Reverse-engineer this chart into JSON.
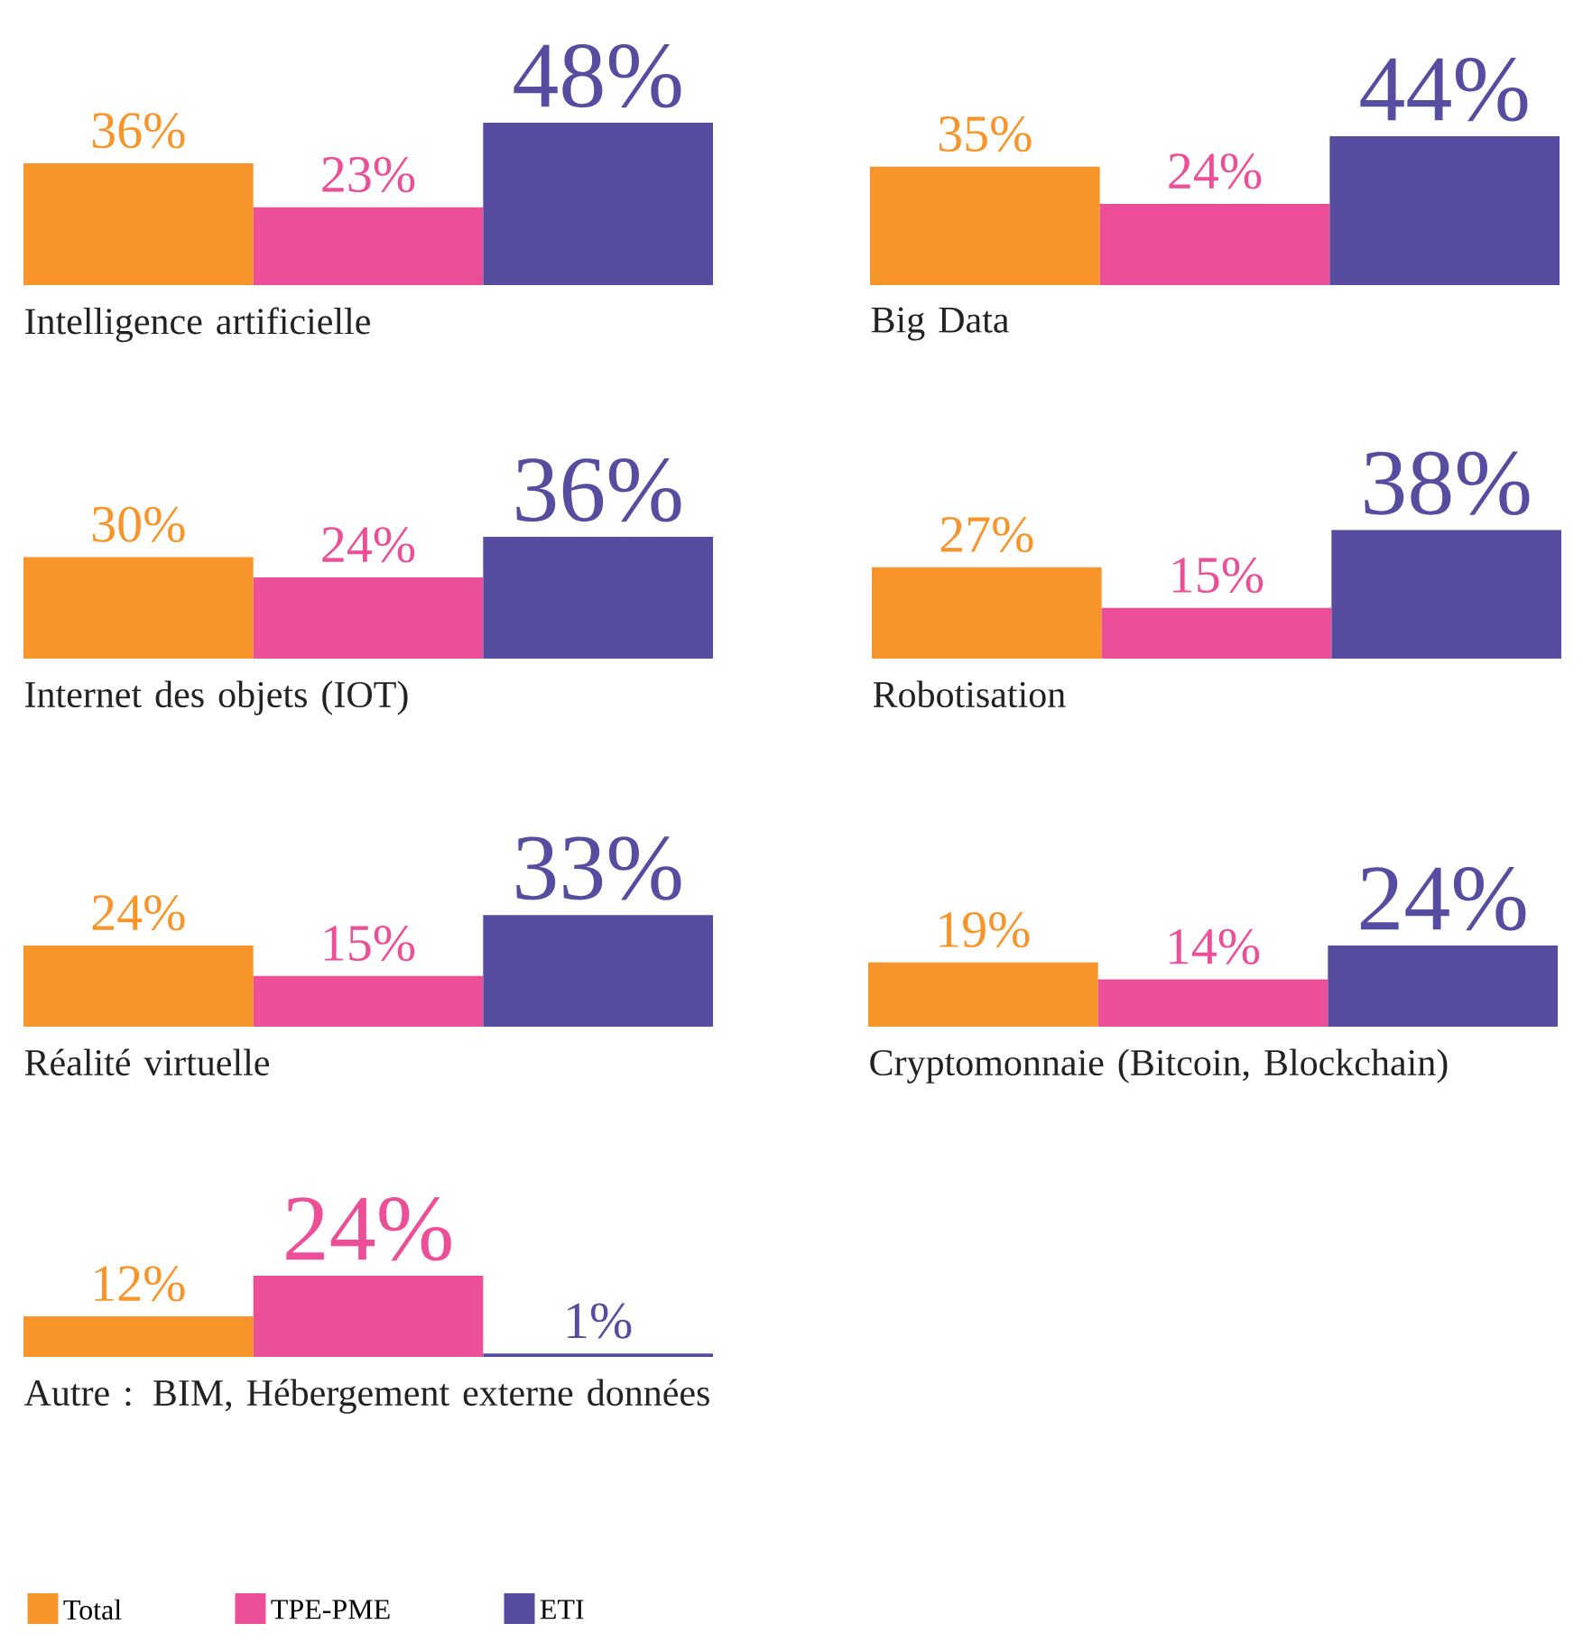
{
  "chart_data": [
    {
      "type": "bar",
      "xlabel": "Intelligence artificielle",
      "categories": [
        null
      ],
      "series": [
        {
          "color": "#f7952b",
          "values": [
            36
          ],
          "value_labels": [
            "36%"
          ]
        },
        {
          "color": "#ec4f97",
          "values": [
            23
          ],
          "value_labels": [
            "23%"
          ]
        },
        {
          "color": "#564ca0",
          "values": [
            48
          ],
          "value_labels": [
            "48%"
          ]
        }
      ]
    },
    {
      "type": "bar",
      "xlabel": "Big Data",
      "categories": [
        null
      ],
      "series": [
        {
          "color": "#f7952b",
          "values": [
            35
          ],
          "value_labels": [
            "35%"
          ]
        },
        {
          "color": "#ec4f97",
          "values": [
            24
          ],
          "value_labels": [
            "24%"
          ]
        },
        {
          "color": "#564ca0",
          "values": [
            44
          ],
          "value_labels": [
            "44%"
          ]
        }
      ]
    },
    {
      "type": "bar",
      "xlabel": "Internet des objets (IOT)",
      "categories": [
        null
      ],
      "series": [
        {
          "color": "#f7952b",
          "values": [
            30
          ],
          "value_labels": [
            "30%"
          ]
        },
        {
          "color": "#ec4f97",
          "values": [
            24
          ],
          "value_labels": [
            "24%"
          ]
        },
        {
          "color": "#564ca0",
          "values": [
            36
          ],
          "value_labels": [
            "36%"
          ]
        }
      ]
    },
    {
      "type": "bar",
      "xlabel": "Robotisation",
      "categories": [
        null
      ],
      "series": [
        {
          "color": "#f7952b",
          "values": [
            27
          ],
          "value_labels": [
            "27%"
          ]
        },
        {
          "color": "#ec4f97",
          "values": [
            15
          ],
          "value_labels": [
            "15%"
          ]
        },
        {
          "color": "#564ca0",
          "values": [
            38
          ],
          "value_labels": [
            "38%"
          ]
        }
      ]
    },
    {
      "type": "bar",
      "xlabel": "Réalité virtuelle",
      "categories": [
        null
      ],
      "series": [
        {
          "color": "#f7952b",
          "values": [
            24
          ],
          "value_labels": [
            "24%"
          ]
        },
        {
          "color": "#ec4f97",
          "values": [
            15
          ],
          "value_labels": [
            "15%"
          ]
        },
        {
          "color": "#564ca0",
          "values": [
            33
          ],
          "value_labels": [
            "33%"
          ]
        }
      ]
    },
    {
      "type": "bar",
      "xlabel": "Cryptomonnaie (Bitcoin, Blockchain)",
      "categories": [
        null
      ],
      "series": [
        {
          "color": "#f7952b",
          "values": [
            19
          ],
          "value_labels": [
            "19%"
          ]
        },
        {
          "color": "#ec4f97",
          "values": [
            14
          ],
          "value_labels": [
            "14%"
          ]
        },
        {
          "color": "#564ca0",
          "values": [
            24
          ],
          "value_labels": [
            "24%"
          ]
        }
      ]
    },
    {
      "type": "bar",
      "xlabel": "Autre : BIM, Hébergement externe données",
      "categories": [
        null
      ],
      "legend": "bottom",
      "series": [
        {
          "name": "Total",
          "color": "#f7952b",
          "values": [
            12
          ],
          "value_labels": [
            "12%"
          ]
        },
        {
          "name": "TPE-PME",
          "color": "#ec4f97",
          "values": [
            24
          ],
          "value_labels": [
            "24%"
          ]
        },
        {
          "name": "ETI",
          "color": "#564ca0",
          "values": [
            1
          ],
          "value_labels": [
            "1%"
          ]
        }
      ]
    }
  ]
}
